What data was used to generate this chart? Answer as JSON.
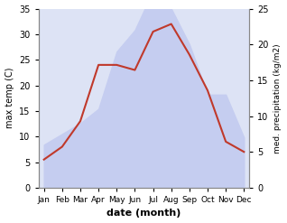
{
  "months": [
    "Jan",
    "Feb",
    "Mar",
    "Apr",
    "May",
    "Jun",
    "Jul",
    "Aug",
    "Sep",
    "Oct",
    "Nov",
    "Dec"
  ],
  "temp": [
    5.5,
    8.0,
    13.0,
    24.0,
    24.0,
    23.0,
    30.5,
    32.0,
    26.0,
    19.0,
    9.0,
    7.0
  ],
  "precip": [
    6.0,
    7.5,
    9.0,
    11.0,
    19.0,
    22.0,
    27.5,
    25.0,
    20.0,
    13.0,
    13.0,
    7.0
  ],
  "temp_color": "#c0392b",
  "precip_fill_color": "#c5cdf0",
  "precip_edge_color": "#c5cdf0",
  "ylabel_left": "max temp (C)",
  "ylabel_right": "med. precipitation (kg/m2)",
  "xlabel": "date (month)",
  "ylim_left": [
    0,
    35
  ],
  "ylim_right": [
    0,
    25
  ],
  "yticks_left": [
    0,
    5,
    10,
    15,
    20,
    25,
    30,
    35
  ],
  "yticks_right": [
    0,
    5,
    10,
    15,
    20,
    25
  ],
  "plot_bg_color": "#dde3f5"
}
